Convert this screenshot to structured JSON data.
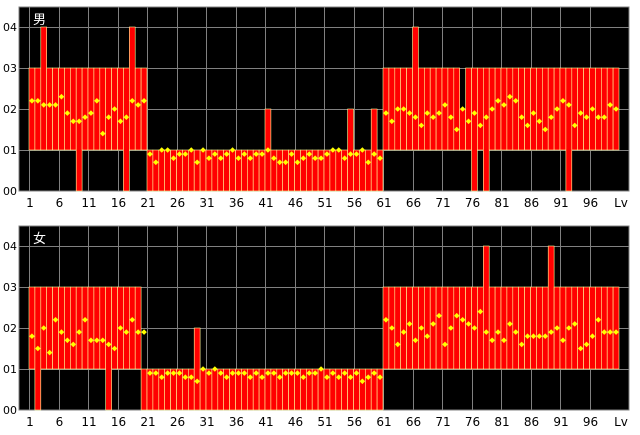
{
  "chart_data": [
    {
      "type": "bar",
      "title": "男",
      "ytick_labels": [
        "00",
        "01",
        "02",
        "03",
        "04"
      ],
      "ylim": [
        0,
        4.4
      ],
      "x_range": [
        1,
        100
      ],
      "xtick_labels": [
        "1",
        "6",
        "11",
        "16",
        "21",
        "26",
        "31",
        "36",
        "41",
        "46",
        "51",
        "56",
        "61",
        "66",
        "71",
        "76",
        "81",
        "86",
        "91",
        "96"
      ],
      "xlabel": "Lv",
      "grid": true,
      "series": [
        {
          "style": "bars",
          "color": "#ff0000",
          "low": [
            1,
            1,
            1,
            1,
            1,
            1,
            1,
            1,
            0,
            1,
            1,
            1,
            1,
            1,
            1,
            1,
            0,
            1,
            1,
            1,
            0,
            0,
            0,
            0,
            0,
            0,
            0,
            0,
            0,
            0,
            0,
            0,
            0,
            0,
            0,
            0,
            0,
            0,
            0,
            0,
            0,
            0,
            0,
            0,
            0,
            0,
            0,
            0,
            0,
            0,
            0,
            0,
            0,
            0,
            0,
            0,
            0,
            0,
            0,
            0,
            1,
            1,
            1,
            1,
            1,
            1,
            1,
            1,
            1,
            1,
            1,
            1,
            1,
            1,
            1,
            0,
            1,
            0,
            1,
            1,
            1,
            1,
            1,
            1,
            1,
            1,
            1,
            1,
            1,
            1,
            1,
            0,
            1,
            1,
            1,
            1,
            1,
            1,
            1,
            1
          ],
          "high": [
            3,
            3,
            4,
            3,
            3,
            3,
            3,
            3,
            3,
            3,
            3,
            3,
            3,
            3,
            3,
            3,
            3,
            4,
            3,
            3,
            1,
            1,
            1,
            1,
            1,
            1,
            1,
            1,
            1,
            1,
            1,
            1,
            1,
            1,
            1,
            1,
            1,
            1,
            1,
            1,
            2,
            1,
            1,
            1,
            1,
            1,
            1,
            1,
            1,
            1,
            1,
            1,
            1,
            1,
            2,
            1,
            1,
            1,
            2,
            1,
            3,
            3,
            3,
            3,
            3,
            4,
            3,
            3,
            3,
            3,
            3,
            3,
            3,
            2,
            3,
            3,
            3,
            3,
            3,
            3,
            3,
            3,
            3,
            3,
            3,
            3,
            3,
            3,
            3,
            3,
            3,
            3,
            3,
            3,
            3,
            3,
            3,
            3,
            3,
            3
          ]
        },
        {
          "style": "points",
          "color": "#ffff00",
          "values": [
            2.2,
            2.2,
            2.1,
            2.1,
            2.1,
            2.3,
            1.9,
            1.7,
            1.7,
            1.8,
            1.9,
            2.2,
            1.4,
            1.8,
            2.0,
            1.7,
            1.8,
            2.2,
            2.1,
            2.2,
            0.9,
            0.7,
            1.0,
            1.0,
            0.8,
            0.9,
            0.9,
            1.0,
            0.7,
            1.0,
            0.8,
            0.9,
            0.8,
            0.9,
            1.0,
            0.8,
            0.9,
            0.8,
            0.9,
            0.9,
            1.0,
            0.8,
            0.7,
            0.7,
            0.9,
            0.7,
            0.8,
            0.9,
            0.8,
            0.8,
            0.9,
            1.0,
            1.0,
            0.8,
            0.9,
            0.9,
            1.0,
            0.7,
            0.9,
            0.8,
            1.9,
            1.7,
            2.0,
            2.0,
            1.9,
            1.8,
            1.6,
            1.9,
            1.8,
            1.9,
            2.1,
            1.8,
            1.5,
            2.0,
            1.7,
            1.9,
            1.6,
            1.8,
            2.0,
            2.2,
            2.1,
            2.3,
            2.2,
            1.8,
            1.6,
            1.9,
            1.7,
            1.5,
            1.8,
            2.0,
            2.2,
            2.1,
            1.6,
            1.9,
            1.8,
            2.0,
            1.8,
            1.8,
            2.1,
            2.0
          ]
        }
      ]
    },
    {
      "type": "bar",
      "title": "女",
      "ytick_labels": [
        "00",
        "01",
        "02",
        "03",
        "04"
      ],
      "ylim": [
        0,
        4.4
      ],
      "x_range": [
        1,
        100
      ],
      "xtick_labels": [
        "1",
        "6",
        "11",
        "16",
        "21",
        "26",
        "31",
        "36",
        "41",
        "46",
        "51",
        "56",
        "61",
        "66",
        "71",
        "76",
        "81",
        "86",
        "91",
        "96"
      ],
      "xlabel": "Lv",
      "grid": true,
      "series": [
        {
          "style": "bars",
          "color": "#ff0000",
          "low": [
            1,
            0,
            1,
            1,
            1,
            1,
            1,
            1,
            1,
            1,
            1,
            1,
            1,
            0,
            1,
            1,
            1,
            1,
            1,
            0,
            0,
            0,
            0,
            0,
            0,
            0,
            0,
            0,
            0,
            0,
            0,
            0,
            0,
            0,
            0,
            0,
            0,
            0,
            0,
            0,
            0,
            0,
            0,
            0,
            0,
            0,
            0,
            0,
            0,
            0,
            0,
            0,
            0,
            0,
            0,
            0,
            0,
            0,
            0,
            0,
            1,
            1,
            1,
            1,
            1,
            1,
            1,
            1,
            1,
            1,
            1,
            1,
            1,
            1,
            1,
            1,
            1,
            1,
            1,
            1,
            1,
            1,
            1,
            1,
            1,
            1,
            1,
            1,
            1,
            1,
            1,
            1,
            1,
            1,
            1,
            1,
            1,
            1,
            1,
            1
          ],
          "high": [
            3,
            3,
            3,
            3,
            3,
            3,
            3,
            3,
            3,
            3,
            3,
            3,
            3,
            3,
            3,
            3,
            3,
            3,
            3,
            1,
            1,
            1,
            1,
            1,
            1,
            1,
            1,
            1,
            2,
            1,
            1,
            1,
            1,
            1,
            1,
            1,
            1,
            1,
            1,
            1,
            1,
            1,
            1,
            1,
            1,
            1,
            1,
            1,
            1,
            1,
            1,
            1,
            1,
            1,
            1,
            1,
            1,
            1,
            1,
            1,
            3,
            3,
            3,
            3,
            3,
            3,
            3,
            3,
            3,
            3,
            3,
            3,
            3,
            3,
            3,
            3,
            3,
            4,
            3,
            3,
            3,
            3,
            3,
            3,
            3,
            3,
            3,
            3,
            4,
            3,
            3,
            3,
            3,
            3,
            3,
            3,
            3,
            3,
            3,
            3
          ]
        },
        {
          "style": "points",
          "color": "#ffff00",
          "values": [
            1.8,
            1.5,
            2.0,
            1.4,
            2.2,
            1.9,
            1.7,
            1.6,
            1.9,
            2.2,
            1.7,
            1.7,
            1.7,
            1.6,
            1.5,
            2.0,
            1.9,
            2.2,
            1.9,
            1.9,
            0.9,
            0.9,
            0.8,
            0.9,
            0.9,
            0.9,
            0.8,
            0.8,
            0.7,
            1.0,
            0.9,
            1.0,
            0.9,
            0.8,
            0.9,
            0.9,
            0.9,
            0.8,
            0.9,
            0.8,
            0.9,
            0.9,
            0.8,
            0.9,
            0.9,
            0.9,
            0.8,
            0.9,
            0.9,
            1.0,
            0.8,
            0.9,
            0.8,
            0.9,
            0.8,
            0.9,
            0.7,
            0.8,
            0.9,
            0.8,
            2.2,
            2.0,
            1.6,
            1.9,
            2.1,
            1.7,
            2.0,
            1.8,
            2.1,
            2.3,
            1.6,
            2.0,
            2.3,
            2.2,
            2.1,
            2.0,
            2.4,
            1.9,
            1.7,
            1.9,
            1.7,
            2.1,
            1.9,
            1.6,
            1.8,
            1.8,
            1.8,
            1.8,
            1.9,
            2.0,
            1.7,
            2.0,
            2.1,
            1.5,
            1.6,
            1.8,
            2.2,
            1.9,
            1.9,
            1.9
          ]
        }
      ]
    }
  ]
}
